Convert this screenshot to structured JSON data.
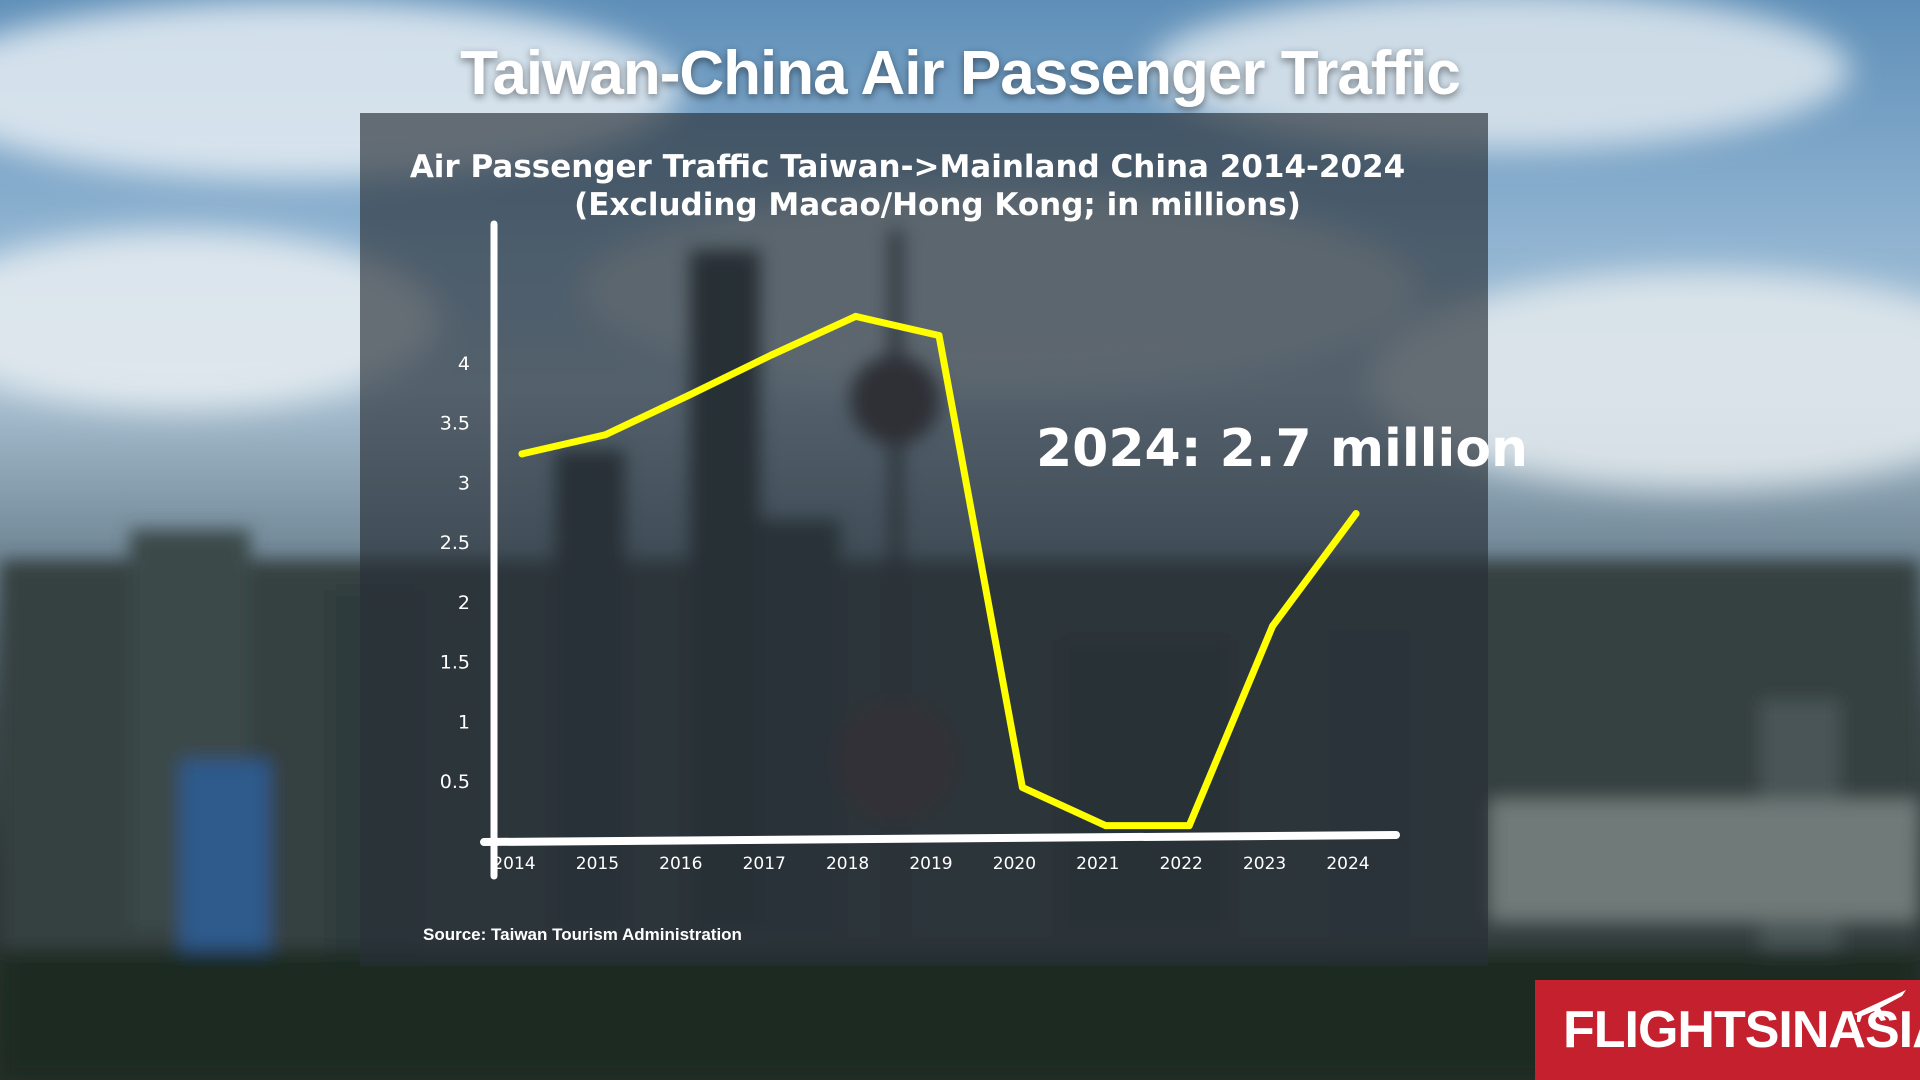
{
  "page": {
    "main_title": "Taiwan-China Air Passenger Traffic",
    "source_note": "Source: Taiwan Tourism Administration",
    "logo_text": "FLIGHTSINASIA",
    "logo_icon": "airplane-icon"
  },
  "colors": {
    "line": "#ffff00",
    "axis": "#ffffff",
    "logo_background": "#c4202e"
  },
  "chart_data": {
    "type": "line",
    "title": "Air Passenger Traffic Taiwan->Mainland China 2014-2024",
    "subtitle": "(Excluding Macao/Hong Kong; in millions)",
    "xlabel": "",
    "ylabel": "",
    "categories": [
      "2014",
      "2015",
      "2016",
      "2017",
      "2018",
      "2019",
      "2020",
      "2021",
      "2022",
      "2023",
      "2024"
    ],
    "series": [
      {
        "values": [
          3.23,
          3.39,
          3.72,
          4.06,
          4.38,
          4.22,
          0.44,
          0.12,
          0.12,
          1.79,
          2.73
        ]
      }
    ],
    "y_ticks": [
      "0.5",
      "1",
      "1.5",
      "2",
      "2.5",
      "3",
      "3.5",
      "4"
    ],
    "y_tick_values": [
      0.5,
      1,
      1.5,
      2,
      2.5,
      3,
      3.5,
      4
    ],
    "ylim": [
      0,
      4.4
    ],
    "grid": false,
    "legend": "none",
    "annotation": "2024: 2.7 million"
  }
}
